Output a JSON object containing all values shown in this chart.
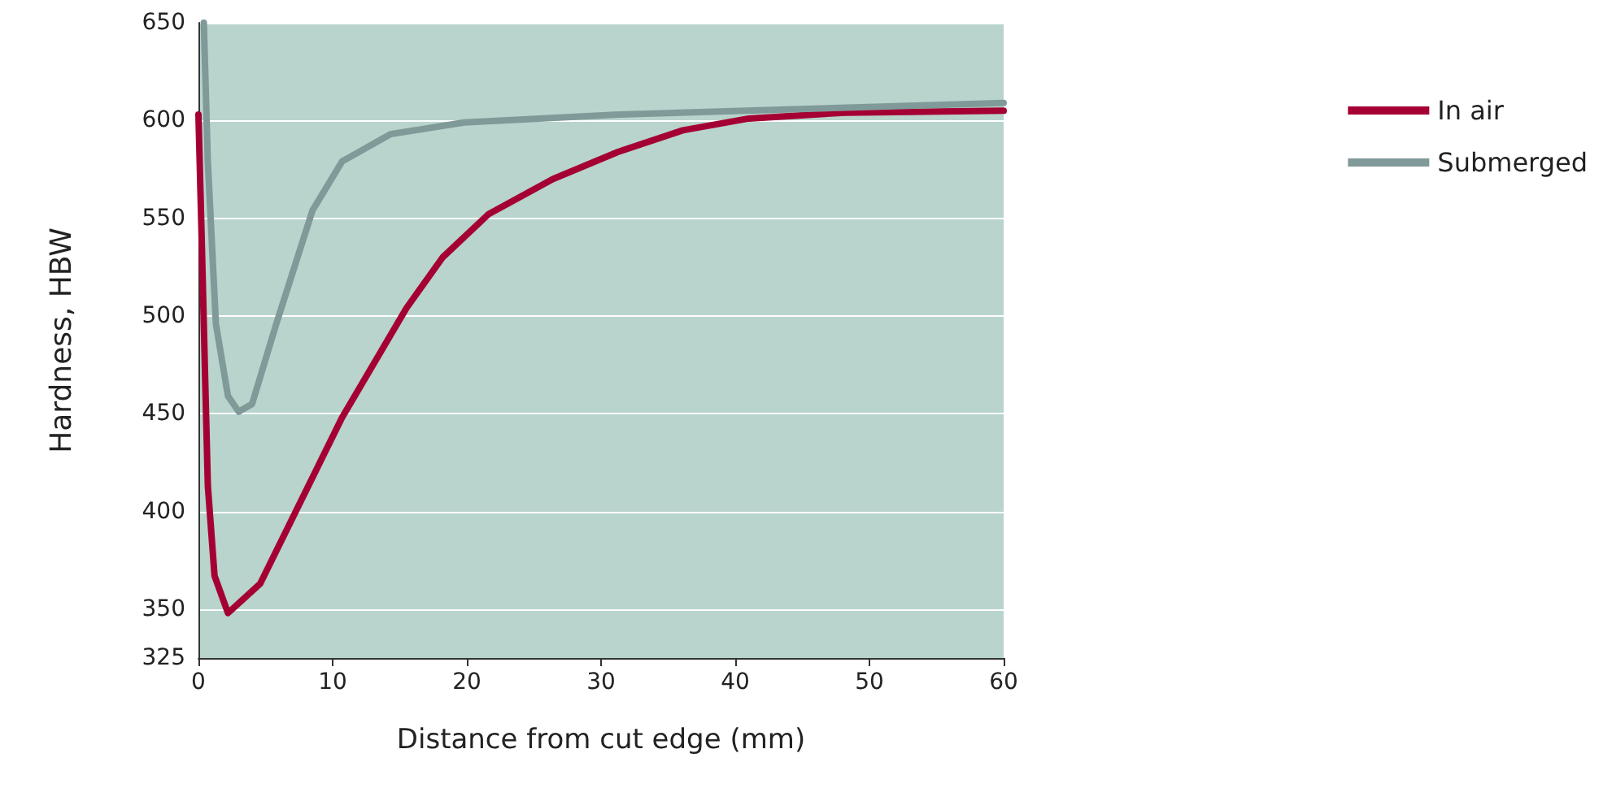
{
  "chart_data": {
    "type": "line",
    "xlabel": "Distance from cut edge (mm)",
    "ylabel": "Hardness, HBW",
    "xlim": [
      0,
      60
    ],
    "xticks": [
      0,
      10,
      20,
      30,
      40,
      50,
      60
    ],
    "ylim": [
      325,
      650
    ],
    "yticks": [
      325,
      350,
      400,
      450,
      500,
      550,
      600,
      650
    ],
    "grid": "y",
    "legend": "top right",
    "marker": "none",
    "line_style": "solid",
    "series": [
      {
        "name": "In air",
        "color": "#a50034",
        "x": [
          0,
          0.25,
          0.7,
          1.2,
          2.2,
          4.6,
          10.7,
          15.5,
          18.2,
          21.6,
          26.4,
          31.3,
          36.1,
          41,
          48.2,
          60
        ],
        "values": [
          603,
          537,
          413,
          367,
          348,
          363,
          448,
          504,
          530,
          552,
          570,
          584,
          595,
          601,
          604,
          605
        ]
      },
      {
        "name": "Submerged",
        "color": "#7f9a98",
        "x": [
          0.4,
          0.7,
          1.3,
          2.2,
          3,
          4,
          5.8,
          8.5,
          10.7,
          14.3,
          19.8,
          31.3,
          45.8,
          60
        ],
        "values": [
          650,
          579,
          496,
          459,
          451,
          455,
          496,
          554,
          579,
          593,
          599,
          603,
          606,
          609
        ]
      }
    ]
  }
}
